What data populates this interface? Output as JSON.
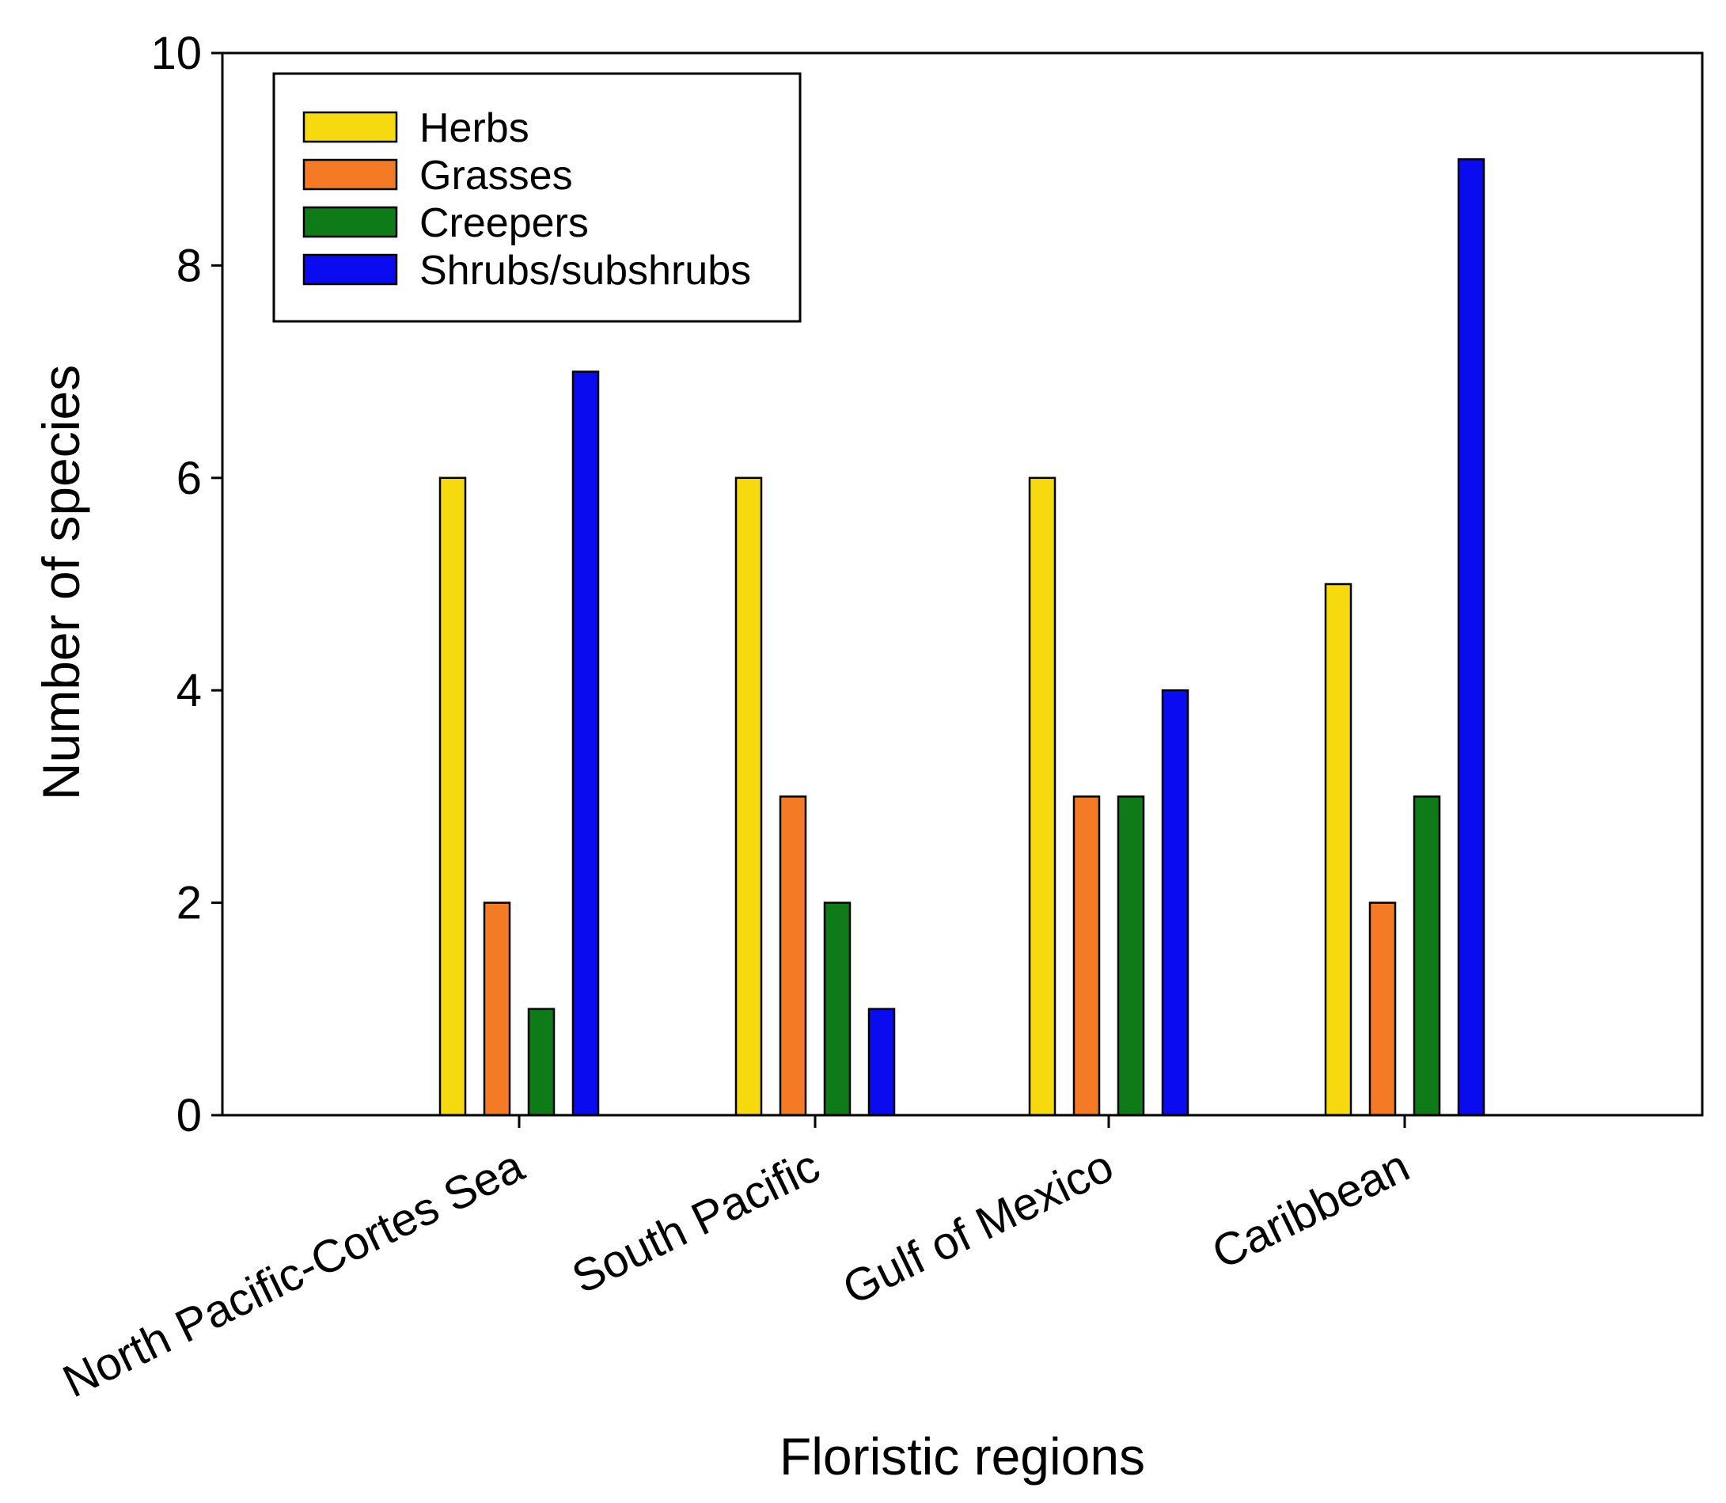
{
  "chart_data": {
    "type": "bar",
    "title": "",
    "xlabel": "Floristic regions",
    "ylabel": "Number of species",
    "ylim": [
      0,
      10
    ],
    "yticks": [
      0,
      2,
      4,
      6,
      8,
      10
    ],
    "grid": false,
    "legend_position": "top-left",
    "categories": [
      "North Pacific-Cortes Sea",
      "South Pacific",
      "Gulf of Mexico",
      "Caribbean"
    ],
    "series": [
      {
        "name": "Herbs",
        "color": "#f7d90f",
        "values": [
          6,
          6,
          6,
          5
        ]
      },
      {
        "name": "Grasses",
        "color": "#f47a25",
        "values": [
          2,
          3,
          3,
          2
        ]
      },
      {
        "name": "Creepers",
        "color": "#0f7a18",
        "values": [
          1,
          2,
          3,
          3
        ]
      },
      {
        "name": "Shrubs/subshrubs",
        "color": "#0b0bf0",
        "values": [
          7,
          1,
          4,
          9
        ]
      }
    ]
  }
}
